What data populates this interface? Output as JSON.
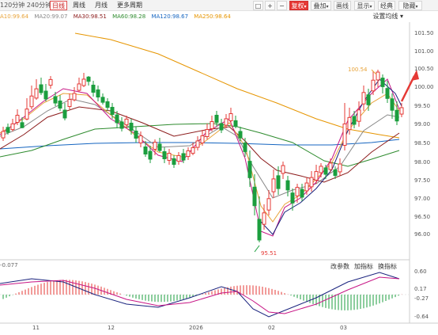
{
  "toolbar": {
    "period_text": "120分钟 240分钟",
    "tabs": [
      {
        "label": "日线",
        "active": true
      },
      {
        "label": "周线",
        "active": false
      },
      {
        "label": "月线",
        "active": false
      },
      {
        "label": "更多周期",
        "active": false
      }
    ],
    "square_icon": "□",
    "plus_icon": "+",
    "minus_icon": "−",
    "adjust_label": "复权",
    "overlay_label": "叠加",
    "draw_label": "画线",
    "display_label": "显示",
    "classic_label": "经典",
    "hide_label": "隐藏"
  },
  "ma_legend": [
    {
      "label": "A10:99.64",
      "color": "#e8a33a"
    },
    {
      "label": "MA20:99.07",
      "color": "#888888"
    },
    {
      "label": "MA30:98.51",
      "color": "#8b1a1a"
    },
    {
      "label": "MA60:98.28",
      "color": "#2e8b2e"
    },
    {
      "label": "MA120:98.67",
      "color": "#1565c0"
    },
    {
      "label": "MA250:98.64",
      "color": "#e69500"
    }
  ],
  "settings_label": "设置均线",
  "annotations": {
    "high": "100.54",
    "low": "95.51"
  },
  "price_axis": [
    "101.50",
    "101.00",
    "100.50",
    "100.00",
    "99.50",
    "99.00",
    "98.50",
    "98.00",
    "97.50",
    "97.00",
    "96.50",
    "96.00"
  ],
  "macd": {
    "label": "-0.077",
    "buttons": [
      "改参数",
      "加指标",
      "换指标"
    ],
    "axis": [
      "0.60",
      "0.17",
      "-0.27",
      "-0.64"
    ]
  },
  "x_axis": [
    "11",
    "12",
    "2026",
    "02",
    "03"
  ],
  "colors": {
    "up": "#e53935",
    "down": "#1b9e3e",
    "accent": "#e53935"
  }
}
